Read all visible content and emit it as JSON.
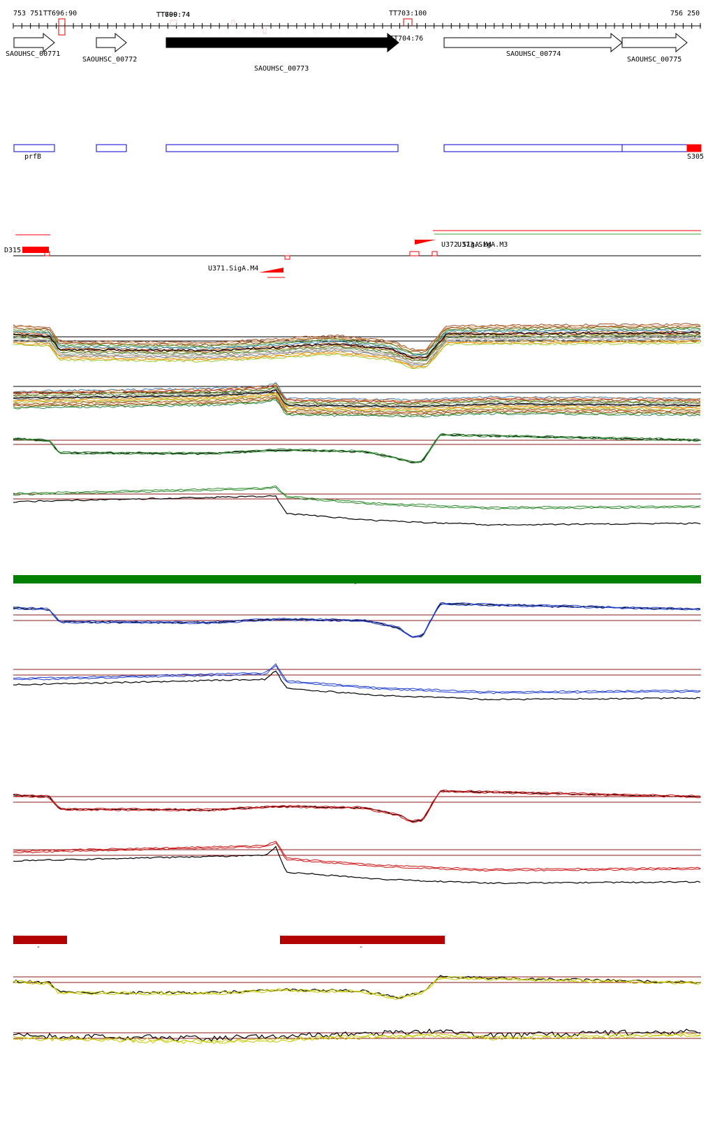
{
  "ruler": {
    "start_label": "753 751",
    "end_label": "756 250"
  },
  "terminators": [
    {
      "label": "TT696:90"
    },
    {
      "label": "TT699:74"
    },
    {
      "label": "TT700:74"
    },
    {
      "label": "TT703:100"
    },
    {
      "label": "TT704:76"
    }
  ],
  "genes": [
    {
      "label": "SAOUHSC_00771",
      "strand": "+",
      "highlight": false
    },
    {
      "label": "SAOUHSC_00772",
      "strand": "+",
      "highlight": false
    },
    {
      "label": "SAOUHSC_00773",
      "strand": "+",
      "highlight": true
    },
    {
      "label": "SAOUHSC_00774",
      "strand": "+",
      "highlight": false
    },
    {
      "label": "SAOUHSC_00775",
      "strand": "+",
      "highlight": false
    }
  ],
  "annotations": [
    {
      "label": "prfB"
    },
    {
      "label": "S305"
    }
  ],
  "transcripts": [
    {
      "label": "D315"
    },
    {
      "label": "U372.SigA.M4"
    },
    {
      "label": "U373.SigA.M3"
    },
    {
      "label": "U371.SigA.M4"
    }
  ],
  "colors": {
    "gene_outline": "#000000",
    "gene_highlight": "#000000",
    "annotation_box": "#0000cc",
    "feature_red": "#ff0000",
    "green_bar": "#008000",
    "dark_red_bar": "#b30000",
    "reference_line": "#8b1a1a",
    "blue_trace": "#1f3fcf",
    "green_trace": "#2e8b2e",
    "red_trace": "#cc1111",
    "yellow_trace": "#c8c800"
  },
  "tracks": [
    {
      "name": "multi-condition-forward",
      "kind": "multi"
    },
    {
      "name": "multi-condition-reverse",
      "kind": "multi"
    },
    {
      "name": "green-forward",
      "kind": "pair",
      "color": "green"
    },
    {
      "name": "green-reverse",
      "kind": "pair",
      "color": "green"
    },
    {
      "name": "blue-forward",
      "kind": "pair",
      "color": "blue"
    },
    {
      "name": "blue-reverse",
      "kind": "pair",
      "color": "blue"
    },
    {
      "name": "red-forward",
      "kind": "pair",
      "color": "red"
    },
    {
      "name": "red-reverse",
      "kind": "pair",
      "color": "red"
    },
    {
      "name": "yellow-forward",
      "kind": "pair",
      "color": "yellow"
    },
    {
      "name": "yellow-reverse",
      "kind": "pair",
      "color": "yellow"
    }
  ],
  "segment_marks": {
    "symbol": "-"
  }
}
